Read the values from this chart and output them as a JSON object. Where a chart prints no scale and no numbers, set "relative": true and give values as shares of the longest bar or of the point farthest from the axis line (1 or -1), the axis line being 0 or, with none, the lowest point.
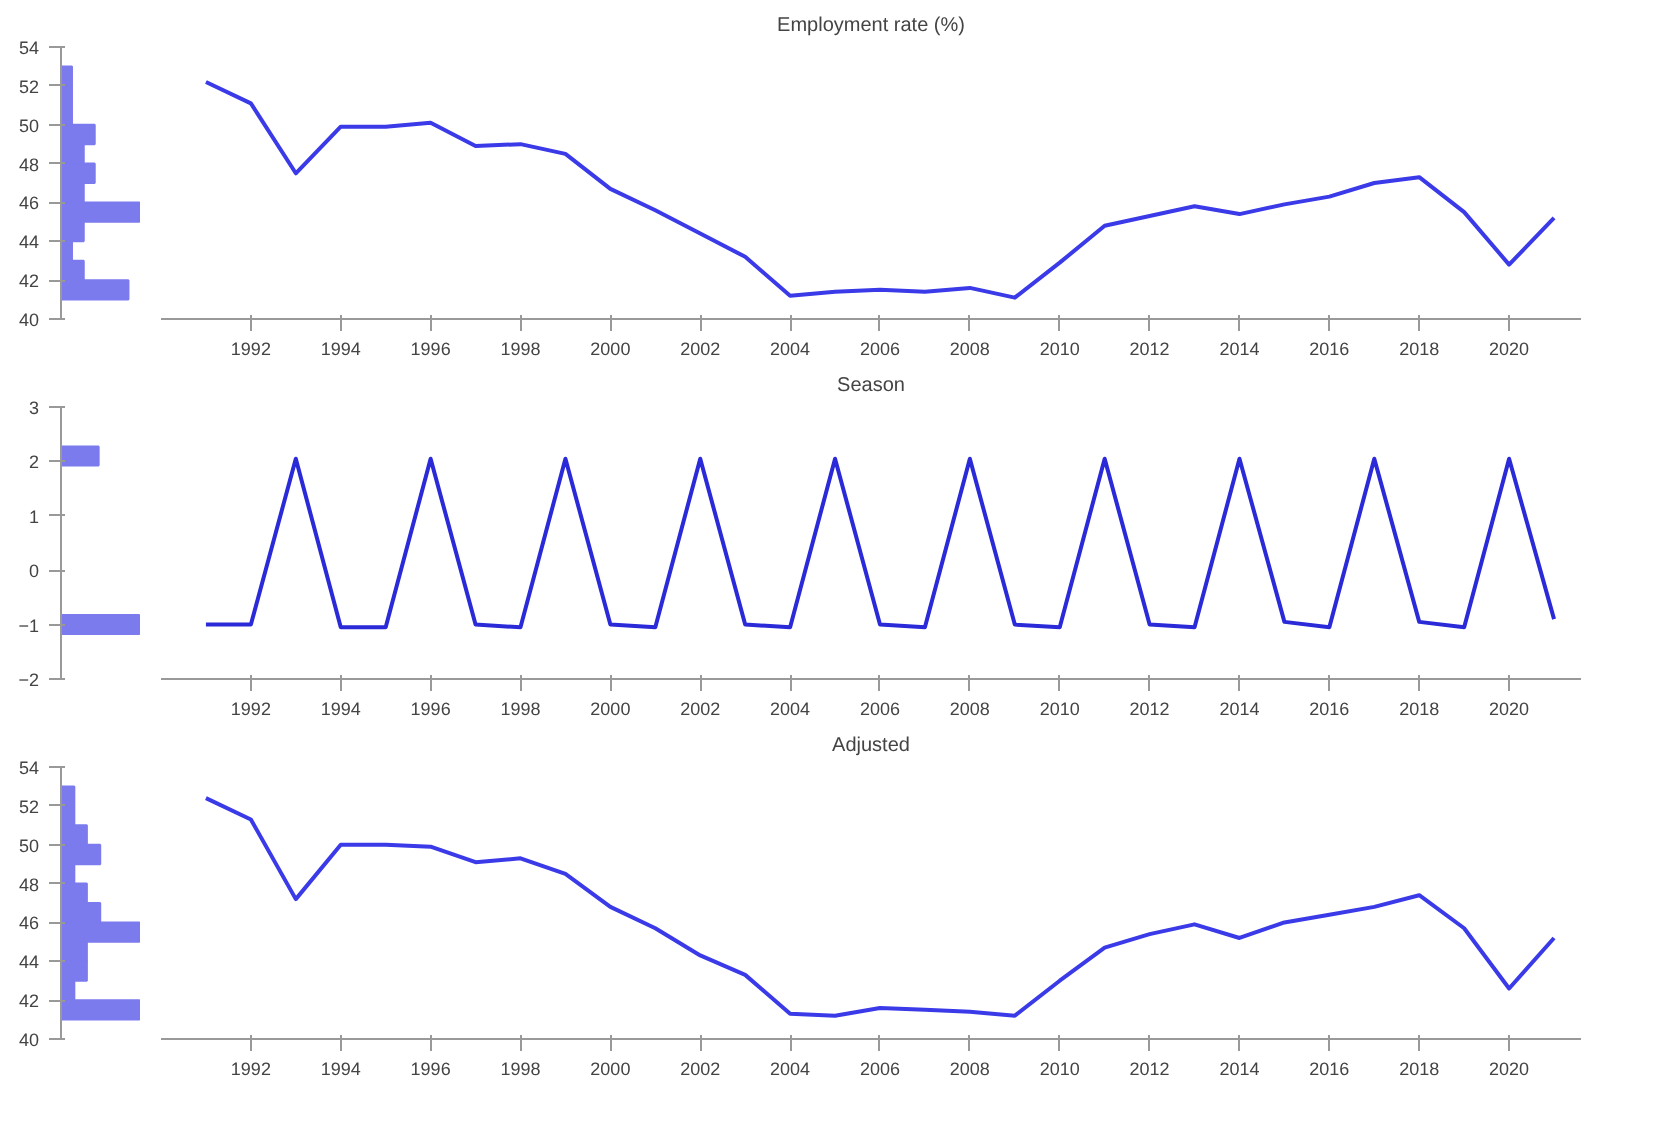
{
  "chart_data": [
    {
      "type": "bar",
      "orientation": "horizontal",
      "relative": true,
      "color": "#7b7bee",
      "tick_labels": "y",
      "ylim": [
        40,
        54
      ],
      "yticks": [
        40,
        42,
        44,
        46,
        48,
        50,
        52,
        54
      ],
      "x": [
        41.5,
        42.5,
        43.5,
        44.5,
        45.5,
        46.5,
        47.5,
        48.5,
        49.5,
        50.5,
        51.5,
        52.5
      ],
      "values": [
        0.86,
        0.29,
        0.14,
        0.29,
        1,
        0.29,
        0.43,
        0.29,
        0.43,
        0.14,
        0.14,
        0.14
      ]
    },
    {
      "type": "line",
      "title": "Employment rate (%)",
      "tick_labels": "x",
      "xlim": [
        1990,
        2021.6
      ],
      "xticks": [
        1992,
        1994,
        1996,
        1998,
        2000,
        2002,
        2004,
        2006,
        2008,
        2010,
        2012,
        2014,
        2016,
        2018,
        2020
      ],
      "ylim": [
        40,
        54
      ],
      "x": [
        1991,
        1992,
        1993,
        1994,
        1995,
        1996,
        1997,
        1998,
        1999,
        2000,
        2001,
        2002,
        2003,
        2004,
        2005,
        2006,
        2007,
        2008,
        2009,
        2010,
        2011,
        2012,
        2013,
        2014,
        2015,
        2016,
        2017,
        2018,
        2019,
        2020,
        2021
      ],
      "series": [
        {
          "color": "#3a3ae8",
          "values": [
            52.2,
            51.1,
            47.5,
            49.9,
            49.9,
            50.1,
            48.9,
            49.0,
            48.5,
            46.7,
            45.6,
            44.4,
            43.2,
            41.2,
            41.4,
            41.5,
            41.4,
            41.6,
            41.1,
            42.9,
            44.8,
            45.3,
            45.8,
            45.4,
            45.9,
            46.3,
            47.0,
            47.3,
            45.5,
            42.8,
            45.2
          ]
        }
      ]
    },
    {
      "type": "bar",
      "orientation": "horizontal",
      "relative": true,
      "color": "#7b7bee",
      "tick_labels": "y",
      "ylim": [
        -2,
        3
      ],
      "yticks": [
        -2,
        -1,
        0,
        1,
        2,
        3
      ],
      "x": [
        -1.0,
        2.1
      ],
      "values": [
        1,
        0.48
      ]
    },
    {
      "type": "line",
      "title": "Season",
      "tick_labels": "x",
      "xlim": [
        1990,
        2021.6
      ],
      "xticks": [
        1992,
        1994,
        1996,
        1998,
        2000,
        2002,
        2004,
        2006,
        2008,
        2010,
        2012,
        2014,
        2016,
        2018,
        2020
      ],
      "ylim": [
        -2,
        3
      ],
      "x": [
        1991,
        1992,
        1993,
        1994,
        1995,
        1996,
        1997,
        1998,
        1999,
        2000,
        2001,
        2002,
        2003,
        2004,
        2005,
        2006,
        2007,
        2008,
        2009,
        2010,
        2011,
        2012,
        2013,
        2014,
        2015,
        2016,
        2017,
        2018,
        2019,
        2020,
        2021
      ],
      "series": [
        {
          "color": "#2a2ad8",
          "values": [
            -1.0,
            -1.0,
            2.05,
            -1.05,
            -1.05,
            2.05,
            -1.0,
            -1.05,
            2.05,
            -1.0,
            -1.05,
            2.05,
            -1.0,
            -1.05,
            2.05,
            -1.0,
            -1.05,
            2.05,
            -1.0,
            -1.05,
            2.05,
            -1.0,
            -1.05,
            2.05,
            -0.95,
            -1.05,
            2.05,
            -0.95,
            -1.05,
            2.05,
            -0.9
          ]
        }
      ]
    },
    {
      "type": "bar",
      "orientation": "horizontal",
      "relative": true,
      "color": "#7b7bee",
      "tick_labels": "y",
      "ylim": [
        40,
        54
      ],
      "yticks": [
        40,
        42,
        44,
        46,
        48,
        50,
        52,
        54
      ],
      "x": [
        41.5,
        42.5,
        43.5,
        44.5,
        45.5,
        46.5,
        47.5,
        48.5,
        49.5,
        50.5,
        51.5,
        52.5
      ],
      "values": [
        1,
        0.17,
        0.33,
        0.33,
        1,
        0.5,
        0.33,
        0.17,
        0.5,
        0.33,
        0.17,
        0.17
      ]
    },
    {
      "type": "line",
      "title": "Adjusted",
      "tick_labels": "x",
      "xlim": [
        1990,
        2021.6
      ],
      "xticks": [
        1992,
        1994,
        1996,
        1998,
        2000,
        2002,
        2004,
        2006,
        2008,
        2010,
        2012,
        2014,
        2016,
        2018,
        2020
      ],
      "ylim": [
        40,
        54
      ],
      "x": [
        1991,
        1992,
        1993,
        1994,
        1995,
        1996,
        1997,
        1998,
        1999,
        2000,
        2001,
        2002,
        2003,
        2004,
        2005,
        2006,
        2007,
        2008,
        2009,
        2010,
        2011,
        2012,
        2013,
        2014,
        2015,
        2016,
        2017,
        2018,
        2019,
        2020,
        2021
      ],
      "series": [
        {
          "color": "#3a3ae8",
          "values": [
            52.4,
            51.3,
            47.2,
            50.0,
            50.0,
            49.9,
            49.1,
            49.3,
            48.5,
            46.8,
            45.7,
            44.3,
            43.3,
            41.3,
            41.2,
            41.6,
            41.5,
            41.4,
            41.2,
            43.0,
            44.7,
            45.4,
            45.9,
            45.2,
            46.0,
            46.4,
            46.8,
            47.4,
            45.7,
            42.6,
            45.2
          ]
        }
      ]
    }
  ]
}
